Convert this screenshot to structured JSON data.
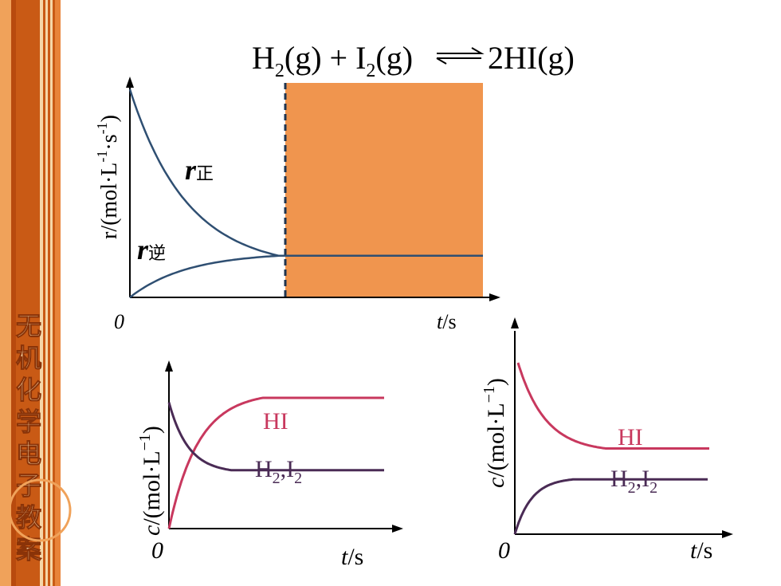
{
  "sidebar": {
    "colors": {
      "dark": "#b84a0e",
      "mid": "#d4671c",
      "light": "#f0a25a",
      "stripe": "#f6d7a8"
    },
    "chars": [
      "无",
      "机",
      "化",
      "学",
      "电",
      "子",
      "教",
      "案"
    ]
  },
  "equation": {
    "lhs": "H",
    "sub1": "2",
    "mid1": "(g) + I",
    "sub2": "2",
    "mid2": "(g)",
    "rhs": "2HI(g)"
  },
  "chart_data": [
    {
      "type": "line",
      "ylabel_main": "r/(mol·L",
      "ylabel_sup1": "-1",
      "ylabel_mid": "·s",
      "ylabel_sup2": "-1",
      "ylabel_end": ")",
      "xlabel": "t/s",
      "origin_label": "0",
      "equilibrium_shade_color": "#f0954e",
      "line_color": "#2f4f72",
      "series": [
        {
          "name": "r",
          "name_sub": "正",
          "shape": "decay",
          "start": 1.0,
          "end": 0.2
        },
        {
          "name": "r",
          "name_sub": "逆",
          "shape": "growth",
          "start": 0.0,
          "end": 0.2
        }
      ]
    },
    {
      "type": "line",
      "ylabel": "c/(mol·L",
      "ylabel_sup": "−1",
      "ylabel_end": ")",
      "xlabel": "t/s",
      "origin_label": "0",
      "series": [
        {
          "name": "HI",
          "color": "#c8385e",
          "shape": "growth",
          "start": 0.0,
          "end": 0.85
        },
        {
          "name": "H",
          "name_full": [
            "H",
            "2",
            ",I",
            "2"
          ],
          "color": "#4a2b55",
          "shape": "decay",
          "start": 0.82,
          "end": 0.38
        }
      ]
    },
    {
      "type": "line",
      "ylabel": "c/(mol·L",
      "ylabel_sup": "−1",
      "ylabel_end": ")",
      "xlabel": "t/s",
      "origin_label": "0",
      "series": [
        {
          "name": "HI",
          "color": "#c8385e",
          "shape": "decay",
          "start": 1.0,
          "end": 0.5
        },
        {
          "name": "H",
          "name_full": [
            "H",
            "2",
            ",I",
            "2"
          ],
          "color": "#4a2b55",
          "shape": "growth",
          "start": 0.0,
          "end": 0.32
        }
      ]
    }
  ]
}
